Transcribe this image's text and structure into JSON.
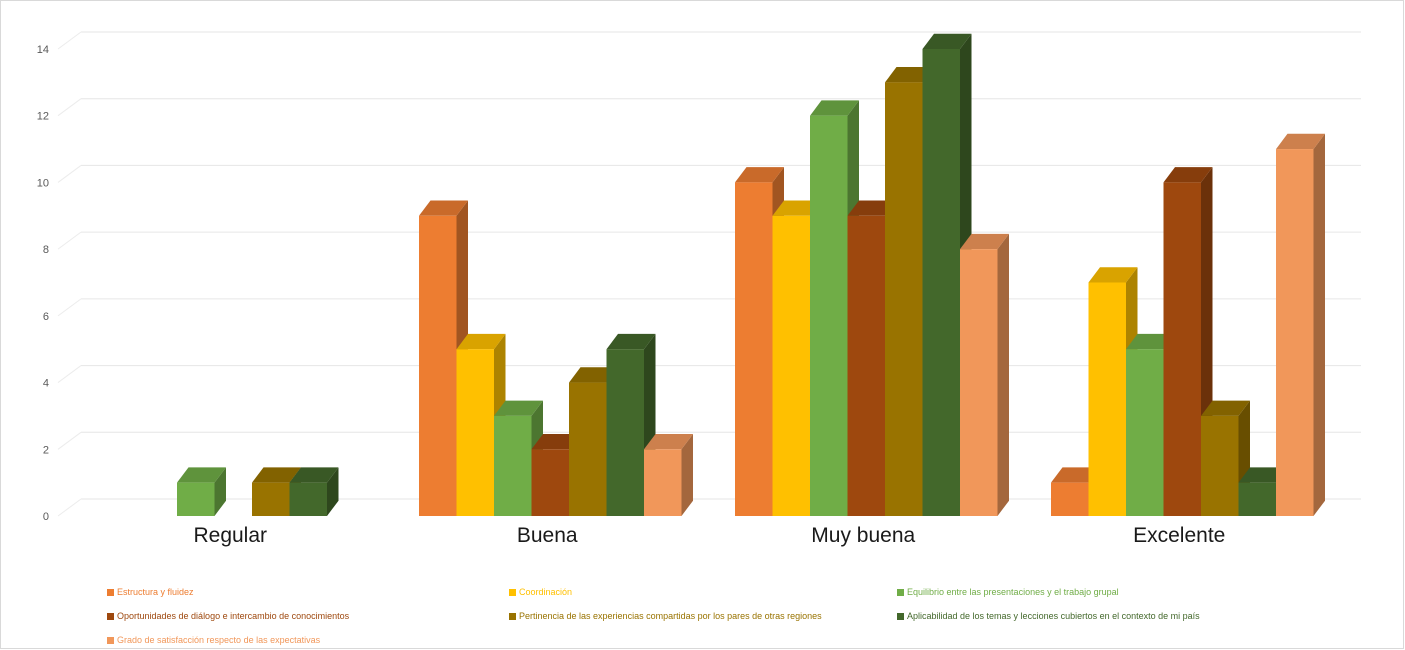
{
  "chart_data": {
    "type": "bar",
    "categories": [
      "Regular",
      "Buena",
      "Muy buena",
      "Excelente"
    ],
    "series": [
      {
        "name": "Estructura y fluidez",
        "color": "#ED7D31",
        "values": [
          0,
          9,
          10,
          1
        ]
      },
      {
        "name": "Coordinación",
        "color": "#FFC000",
        "values": [
          0,
          5,
          9,
          7
        ]
      },
      {
        "name": "Equilibrio entre las presentaciones y el trabajo grupal",
        "color": "#70AD47",
        "values": [
          1,
          3,
          12,
          5
        ]
      },
      {
        "name": "Oportunidades de diálogo e intercambio de conocimientos",
        "color": "#9E480E",
        "values": [
          0,
          2,
          9,
          10
        ]
      },
      {
        "name": "Pertinencia de las experiencias compartidas por los pares de otras regiones",
        "color": "#997300",
        "values": [
          1,
          4,
          13,
          3
        ]
      },
      {
        "name": "Aplicabilidad de los temas y lecciones cubiertos en el contexto de mi país",
        "color": "#43682B",
        "values": [
          1,
          5,
          14,
          1
        ]
      },
      {
        "name": "Grado de satisfacción respecto de las expectativas",
        "color": "#F1975A",
        "values": [
          0,
          2,
          8,
          11
        ]
      }
    ],
    "yticks": [
      "0",
      "2",
      "4",
      "6",
      "8",
      "10",
      "12",
      "14"
    ],
    "ylim": [
      0,
      14
    ],
    "grid": true,
    "legend_position": "bottom",
    "title": "",
    "xlabel": "",
    "ylabel": ""
  }
}
